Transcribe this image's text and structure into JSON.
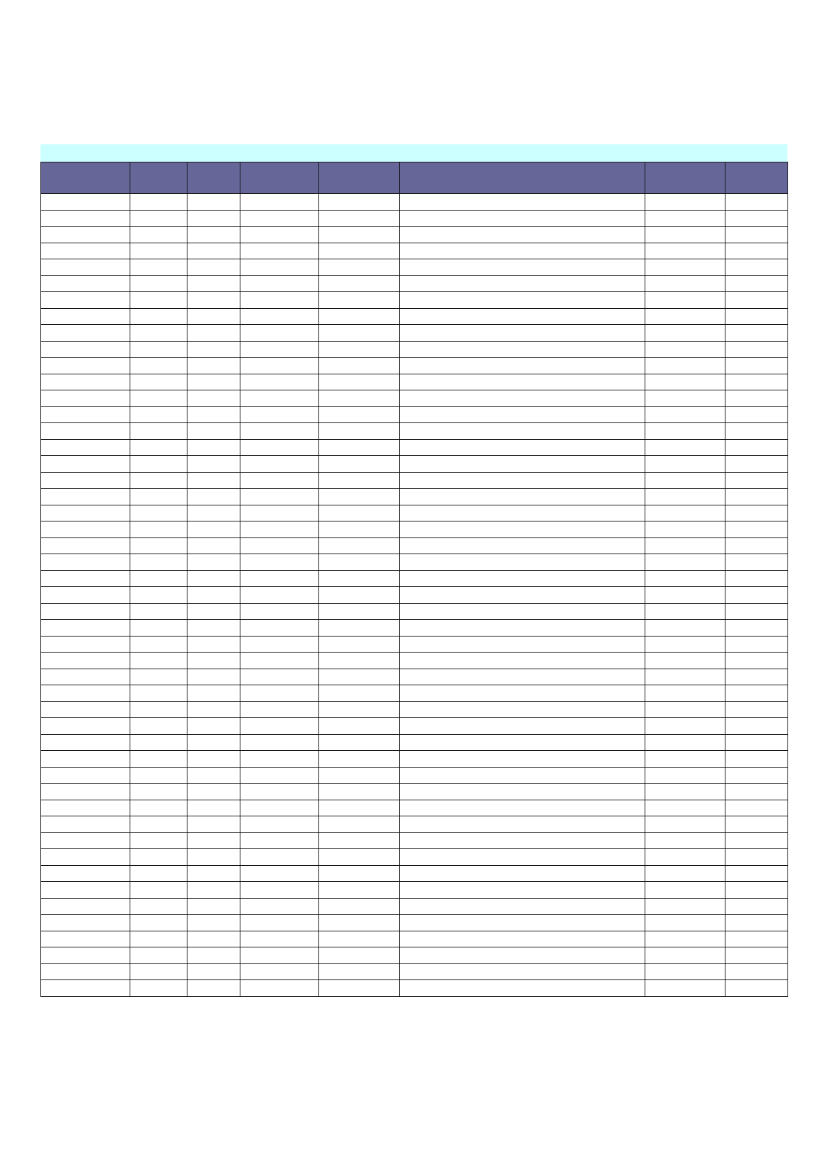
{
  "colors": {
    "title_band": "#ccffff",
    "header": "#666699",
    "grid": "#111111"
  },
  "title_band": {
    "text": ""
  },
  "table": {
    "headers": [
      "",
      "",
      "",
      "",
      "",
      "",
      "",
      ""
    ],
    "row_count": 49
  }
}
